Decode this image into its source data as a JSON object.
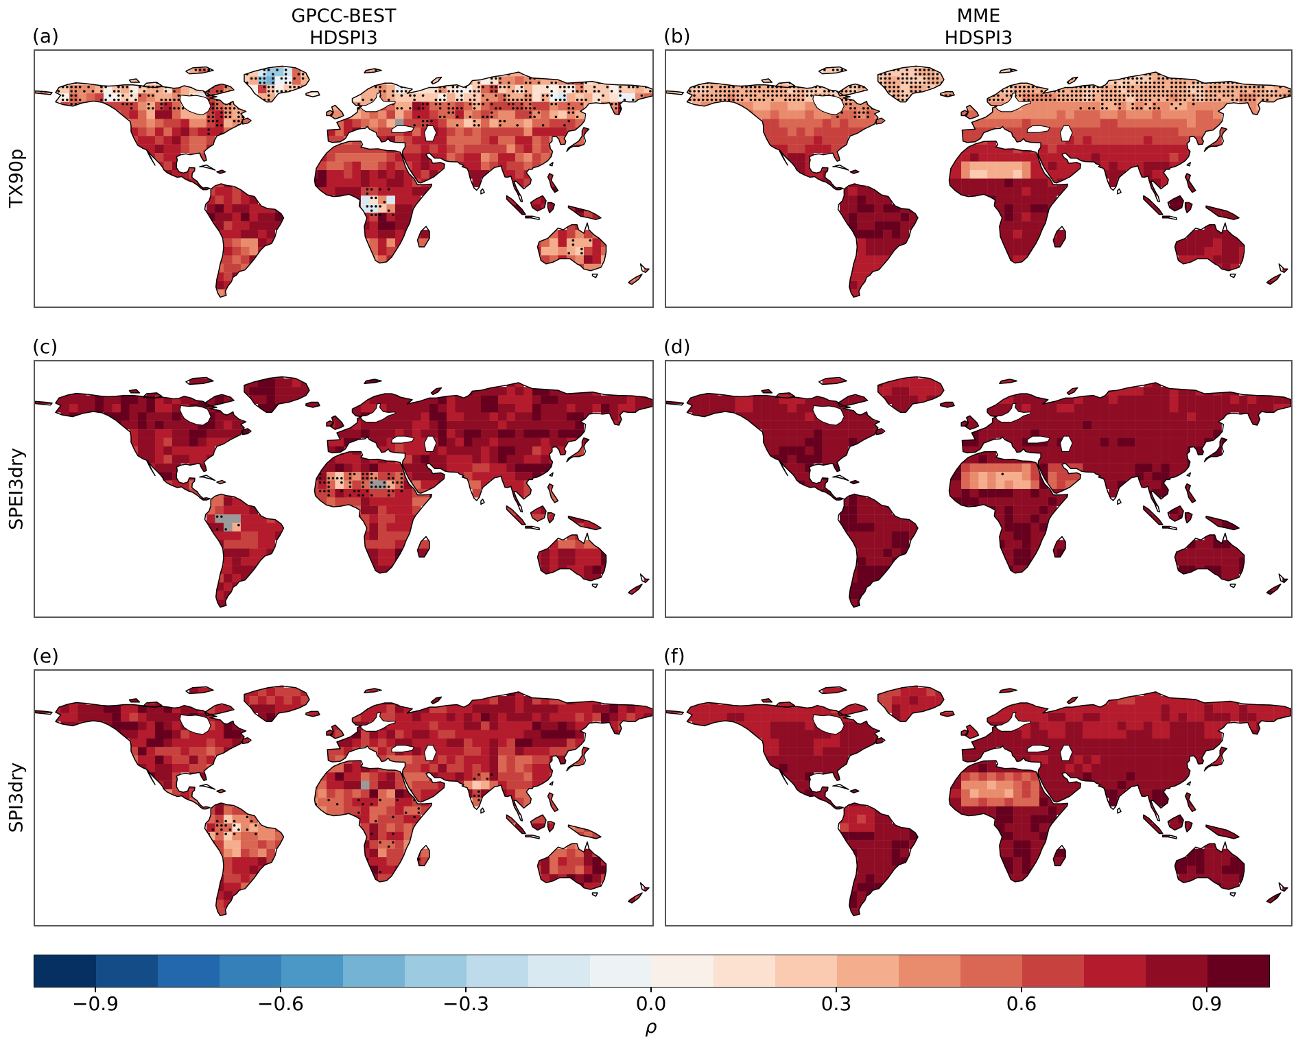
{
  "figure": {
    "background": "#ffffff",
    "column_titles": [
      {
        "line1": "GPCC-BEST",
        "line2": "HDSPI3"
      },
      {
        "line1": "MME",
        "line2": "HDSPI3"
      }
    ],
    "row_labels": [
      "TX90p",
      "SPEI3dry",
      "SPI3dry"
    ],
    "panel_labels": [
      "(a)",
      "(b)",
      "(c)",
      "(d)",
      "(e)",
      "(f)"
    ]
  },
  "colorbar": {
    "label": "ρ",
    "tick_labels": [
      "−0.9",
      "−0.6",
      "−0.3",
      "0.0",
      "0.3",
      "0.6",
      "0.9"
    ],
    "tick_values": [
      -0.9,
      -0.6,
      -0.3,
      0.0,
      0.3,
      0.6,
      0.9
    ],
    "vmin": -1.0,
    "vmax": 1.0,
    "n_segments": 20,
    "colors": [
      "#053061",
      "#144c88",
      "#2368ad",
      "#3580b9",
      "#4b98c6",
      "#75b3d4",
      "#9ccae1",
      "#bddbea",
      "#d9e9f2",
      "#edf2f5",
      "#f9f0ea",
      "#fce1d1",
      "#facab1",
      "#f5ae8d",
      "#e98c6e",
      "#d96753",
      "#c7423f",
      "#b41c2d",
      "#8e0d25",
      "#67001f"
    ],
    "missing_color": "#9a9a9a",
    "stipple_color": "#0a0a0a"
  },
  "chart_data": {
    "type": "heatmap",
    "projection": "equirectangular",
    "lon_range": [
      -180,
      180
    ],
    "lat_range": [
      -60,
      90
    ],
    "value_name": "correlation ρ between each index and HDSPI3",
    "grid_step_deg": 5,
    "panels": [
      {
        "label": "(a)",
        "column": "GPCC-BEST",
        "row": "TX90p",
        "style": "noisy",
        "seed": 101,
        "description": "Noisy strong positive correlations (0.6–0.95) over most mid/low-latitude land; weak or negative (light blue) stippled values at high northern latitudes, interior Greenland and parts of central Africa.",
        "bands": [
          {
            "lat": [
              60,
              90
            ],
            "mean": 0.3,
            "spread": 0.45
          },
          {
            "lat": [
              45,
              60
            ],
            "mean": 0.55,
            "spread": 0.3
          },
          {
            "lat": [
              20,
              45
            ],
            "mean": 0.68,
            "spread": 0.25
          },
          {
            "lat": [
              -20,
              20
            ],
            "mean": 0.78,
            "spread": 0.2
          },
          {
            "lat": [
              -60,
              -20
            ],
            "mean": 0.62,
            "spread": 0.28
          }
        ],
        "regions": [
          {
            "name": "greenland-interior",
            "lon": [
              -48,
              -28
            ],
            "lat": [
              68,
              79
            ],
            "mean": -0.25,
            "spread": 0.2
          },
          {
            "name": "central-africa",
            "lon": [
              12,
              28
            ],
            "lat": [
              -6,
              6
            ],
            "mean": 0.25,
            "spread": 0.45
          },
          {
            "name": "australia",
            "lon": [
              113,
              154
            ],
            "lat": [
              -39,
              -11
            ],
            "mean": 0.55,
            "spread": 0.28
          }
        ],
        "gray": [
          {
            "lon": [
              30,
              40
            ],
            "lat": [
              44,
              52
            ],
            "density": 0.25
          }
        ],
        "stipple": [
          {
            "lon": [
              -180,
              180
            ],
            "lat": [
              55,
              78
            ],
            "density": 0.45
          },
          {
            "lon": [
              -80,
              -55
            ],
            "lat": [
              42,
              58
            ],
            "density": 0.35
          },
          {
            "lon": [
              40,
              140
            ],
            "lat": [
              45,
              55
            ],
            "density": 0.25
          },
          {
            "lon": [
              12,
              30
            ],
            "lat": [
              -8,
              8
            ],
            "density": 0.35
          },
          {
            "lon": [
              130,
              150
            ],
            "lat": [
              -32,
              -22
            ],
            "density": 0.2
          }
        ]
      },
      {
        "label": "(b)",
        "column": "MME",
        "row": "TX90p",
        "style": "smooth",
        "seed": 202,
        "noise": 0.05,
        "description": "Smooth positive field rising from ~0.3 (stippled high northern latitudes and Greenland) to 0.85–0.95 in the tropics; lighter (~0.35–0.5) over the Sahara.",
        "bands": [
          {
            "lat": 82,
            "mean": 0.28
          },
          {
            "lat": 65,
            "mean": 0.33
          },
          {
            "lat": 55,
            "mean": 0.45
          },
          {
            "lat": 45,
            "mean": 0.6
          },
          {
            "lat": 35,
            "mean": 0.7
          },
          {
            "lat": 25,
            "mean": 0.76
          },
          {
            "lat": 10,
            "mean": 0.85
          },
          {
            "lat": -5,
            "mean": 0.88
          },
          {
            "lat": -20,
            "mean": 0.82
          },
          {
            "lat": -45,
            "mean": 0.78
          }
        ],
        "regions": [
          {
            "name": "greenland",
            "lon": [
              -55,
              -20
            ],
            "lat": [
              60,
              84
            ],
            "mean": 0.3,
            "spread": 0.06
          },
          {
            "name": "sahara",
            "lon": [
              -12,
              32
            ],
            "lat": [
              14,
              27
            ],
            "mean": 0.45,
            "spread": 0.08
          },
          {
            "name": "sahara-core",
            "lon": [
              -5,
              25
            ],
            "lat": [
              17,
              24
            ],
            "mean": 0.33,
            "spread": 0.06
          },
          {
            "name": "amazon",
            "lon": [
              -75,
              -45
            ],
            "lat": [
              -20,
              5
            ],
            "mean": 0.9,
            "spread": 0.04
          }
        ],
        "gray": [],
        "stipple": [
          {
            "lon": [
              -180,
              180
            ],
            "lat": [
              62,
              84
            ],
            "density": 0.85
          },
          {
            "lon": [
              -85,
              -55
            ],
            "lat": [
              50,
              62
            ],
            "density": 0.55
          },
          {
            "lon": [
              55,
              125
            ],
            "lat": [
              55,
              62
            ],
            "density": 0.3
          }
        ]
      },
      {
        "label": "(c)",
        "column": "GPCC-BEST",
        "row": "SPEI3dry",
        "style": "noisy",
        "seed": 303,
        "description": "Dark red (0.8–1.0) over most land; weaker stippled values (0.3–0.6) over Sahara/Sahel; gray missing-data cells over the western Amazon, central Sahara and central Africa.",
        "bands": [
          {
            "lat": [
              45,
              90
            ],
            "mean": 0.85,
            "spread": 0.13
          },
          {
            "lat": [
              20,
              45
            ],
            "mean": 0.8,
            "spread": 0.17
          },
          {
            "lat": [
              -20,
              20
            ],
            "mean": 0.72,
            "spread": 0.22
          },
          {
            "lat": [
              -60,
              -20
            ],
            "mean": 0.82,
            "spread": 0.15
          }
        ],
        "regions": [
          {
            "name": "sahara",
            "lon": [
              -8,
              35
            ],
            "lat": [
              13,
              27
            ],
            "mean": 0.45,
            "spread": 0.3
          },
          {
            "name": "amazon-west",
            "lon": [
              -76,
              -58
            ],
            "lat": [
              -12,
              2
            ],
            "mean": 0.55,
            "spread": 0.3
          },
          {
            "name": "iceland",
            "lon": [
              -23,
              -13
            ],
            "lat": [
              63,
              67
            ],
            "mean": 0.55,
            "spread": 0.1
          }
        ],
        "gray": [
          {
            "lon": [
              -74,
              -58
            ],
            "lat": [
              -10,
              0
            ],
            "density": 0.55
          },
          {
            "lon": [
              8,
              28
            ],
            "lat": [
              16,
              24
            ],
            "density": 0.4
          },
          {
            "lon": [
              10,
              20
            ],
            "lat": [
              -5,
              3
            ],
            "density": 0.3
          },
          {
            "lon": [
              44,
              52
            ],
            "lat": [
              14,
              20
            ],
            "density": 0.2
          }
        ],
        "stipple": [
          {
            "lon": [
              -15,
              35
            ],
            "lat": [
              12,
              24
            ],
            "density": 0.5
          },
          {
            "lon": [
              -74,
              -58
            ],
            "lat": [
              -10,
              2
            ],
            "density": 0.25
          }
        ]
      },
      {
        "label": "(d)",
        "column": "MME",
        "row": "SPEI3dry",
        "style": "smooth",
        "seed": 404,
        "noise": 0.04,
        "description": "Uniformly strong correlations (0.8–0.95) with lighter values (0.35–0.6) over the Sahara.",
        "bands": [
          {
            "lat": 82,
            "mean": 0.76
          },
          {
            "lat": 60,
            "mean": 0.84
          },
          {
            "lat": 40,
            "mean": 0.88
          },
          {
            "lat": 20,
            "mean": 0.88
          },
          {
            "lat": 0,
            "mean": 0.88
          },
          {
            "lat": -25,
            "mean": 0.9
          },
          {
            "lat": -45,
            "mean": 0.92
          }
        ],
        "regions": [
          {
            "name": "sahara",
            "lon": [
              -12,
              35
            ],
            "lat": [
              13,
              28
            ],
            "mean": 0.55,
            "spread": 0.07
          },
          {
            "name": "sahara-core",
            "lon": [
              -5,
              28
            ],
            "lat": [
              16,
              25
            ],
            "mean": 0.38,
            "spread": 0.06
          },
          {
            "name": "arabia",
            "lon": [
              38,
              58
            ],
            "lat": [
              15,
              30
            ],
            "mean": 0.62,
            "spread": 0.06
          }
        ],
        "gray": [],
        "stipple": [
          {
            "lon": [
              10,
              14
            ],
            "lat": [
              20,
              23
            ],
            "density": 0.3
          }
        ]
      },
      {
        "label": "(e)",
        "column": "GPCC-BEST",
        "row": "SPI3dry",
        "style": "noisy",
        "seed": 505,
        "description": "Strong but noisy positive correlations (0.5–0.95); lighter stippled values over northern South America and India; isolated gray cells in the central Sahara.",
        "bands": [
          {
            "lat": [
              45,
              90
            ],
            "mean": 0.78,
            "spread": 0.2
          },
          {
            "lat": [
              20,
              45
            ],
            "mean": 0.7,
            "spread": 0.26
          },
          {
            "lat": [
              -20,
              20
            ],
            "mean": 0.62,
            "spread": 0.3
          },
          {
            "lat": [
              -60,
              -20
            ],
            "mean": 0.75,
            "spread": 0.24
          }
        ],
        "regions": [
          {
            "name": "amazon-north",
            "lon": [
              -78,
              -48
            ],
            "lat": [
              -12,
              6
            ],
            "mean": 0.45,
            "spread": 0.28
          },
          {
            "name": "india",
            "lon": [
              70,
              88
            ],
            "lat": [
              8,
              28
            ],
            "mean": 0.55,
            "spread": 0.3
          }
        ],
        "gray": [
          {
            "lon": [
              6,
              16
            ],
            "lat": [
              19,
              26
            ],
            "density": 0.3
          },
          {
            "lon": [
              28,
              34
            ],
            "lat": [
              -2,
              4
            ],
            "density": 0.2
          }
        ],
        "stipple": [
          {
            "lon": [
              -78,
              -48
            ],
            "lat": [
              -12,
              6
            ],
            "density": 0.3
          },
          {
            "lon": [
              -20,
              45
            ],
            "lat": [
              -35,
              15
            ],
            "density": 0.12
          },
          {
            "lon": [
              70,
              90
            ],
            "lat": [
              8,
              28
            ],
            "density": 0.15
          }
        ]
      },
      {
        "label": "(f)",
        "column": "MME",
        "row": "SPI3dry",
        "style": "smooth",
        "seed": 606,
        "noise": 0.05,
        "description": "Smooth strong correlations (0.75–0.9); lighter (0.4–0.6) over the Sahara; slightly reduced values at high northern latitudes.",
        "bands": [
          {
            "lat": 82,
            "mean": 0.7
          },
          {
            "lat": 60,
            "mean": 0.78
          },
          {
            "lat": 40,
            "mean": 0.84
          },
          {
            "lat": 20,
            "mean": 0.86
          },
          {
            "lat": 0,
            "mean": 0.87
          },
          {
            "lat": -25,
            "mean": 0.89
          },
          {
            "lat": -45,
            "mean": 0.9
          }
        ],
        "regions": [
          {
            "name": "sahara",
            "lon": [
              -12,
              35
            ],
            "lat": [
              12,
              28
            ],
            "mean": 0.58,
            "spread": 0.08
          },
          {
            "name": "sahara-core",
            "lon": [
              -8,
              20
            ],
            "lat": [
              15,
              25
            ],
            "mean": 0.45,
            "spread": 0.07
          },
          {
            "name": "nw-south-america",
            "lon": [
              -80,
              -60
            ],
            "lat": [
              -5,
              10
            ],
            "mean": 0.72,
            "spread": 0.06
          }
        ],
        "gray": [],
        "stipple": []
      }
    ]
  }
}
